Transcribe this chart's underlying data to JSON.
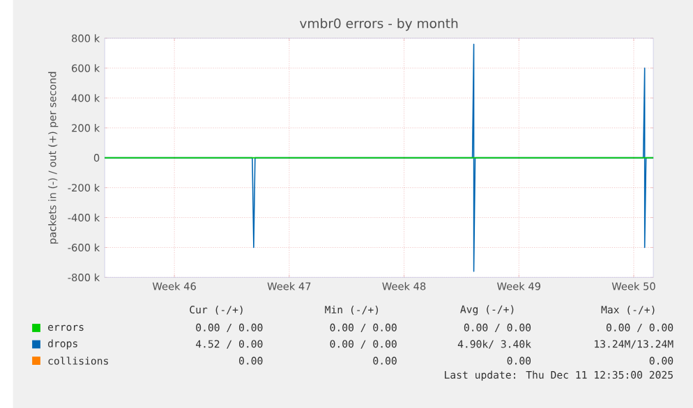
{
  "chart_data": {
    "type": "line",
    "title": "vmbr0 errors - by month",
    "ylabel": "packets in (-) / out (+) per second",
    "xlim": [
      "2025-11-09T06:00",
      "2025-12-12T16:40"
    ],
    "xticks": [
      {
        "value": "2025-11-13T12:00",
        "label": "Week 46"
      },
      {
        "value": "2025-11-20T12:00",
        "label": "Week 47"
      },
      {
        "value": "2025-11-27T12:00",
        "label": "Week 48"
      },
      {
        "value": "2025-12-04T12:00",
        "label": "Week 49"
      },
      {
        "value": "2025-12-11T12:00",
        "label": "Week 50"
      }
    ],
    "ylim": [
      -800000,
      800000
    ],
    "yticks": [
      {
        "value": -800000,
        "label": "-800 k"
      },
      {
        "value": -600000,
        "label": "-600 k"
      },
      {
        "value": -400000,
        "label": "-400 k"
      },
      {
        "value": -200000,
        "label": "-200 k"
      },
      0,
      {
        "value": 200000,
        "label": "200 k"
      },
      {
        "value": 400000,
        "label": "400 k"
      },
      {
        "value": 600000,
        "label": "600 k"
      },
      {
        "value": 800000,
        "label": "800 k"
      }
    ],
    "grid": true,
    "legend": "bottom",
    "series": [
      {
        "name": "errors",
        "color": "#00cc00",
        "x": [
          "2025-11-09T06:00",
          "2025-12-12T16:40"
        ],
        "values": [
          0,
          0
        ]
      },
      {
        "name": "drops",
        "color": "#0066b3",
        "x": [
          "2025-11-09T06:00",
          "2025-11-18T06:00",
          "2025-11-18T08:00",
          "2025-11-18T10:00",
          "2025-12-01T16:00",
          "2025-12-01T18:00",
          "2025-12-01T18:00",
          "2025-12-01T20:00",
          "2025-12-12T02:00",
          "2025-12-12T04:00",
          "2025-12-12T04:00",
          "2025-12-12T06:00",
          "2025-12-12T16:40"
        ],
        "values": [
          0,
          0,
          -600000,
          0,
          0,
          760000,
          -760000,
          0,
          0,
          600000,
          -600000,
          0,
          0
        ]
      },
      {
        "name": "collisions",
        "color": "#ff8000"
      }
    ],
    "annotations": [
      "Cur (-/+)",
      "Min (-/+)",
      "Avg (-/+)",
      "Max (-/+)",
      "0.00 / 0.00",
      "0.00 / 0.00",
      "0.00 / 0.00",
      "0.00 / 0.00",
      "4.52 / 0.00",
      "0.00 / 0.00",
      "4.90k/ 3.40k",
      "13.24M/13.24M",
      "0.00",
      "0.00",
      "0.00",
      "0.00",
      "Last update: Thu Dec 11 12:35:00 2025"
    ]
  }
}
